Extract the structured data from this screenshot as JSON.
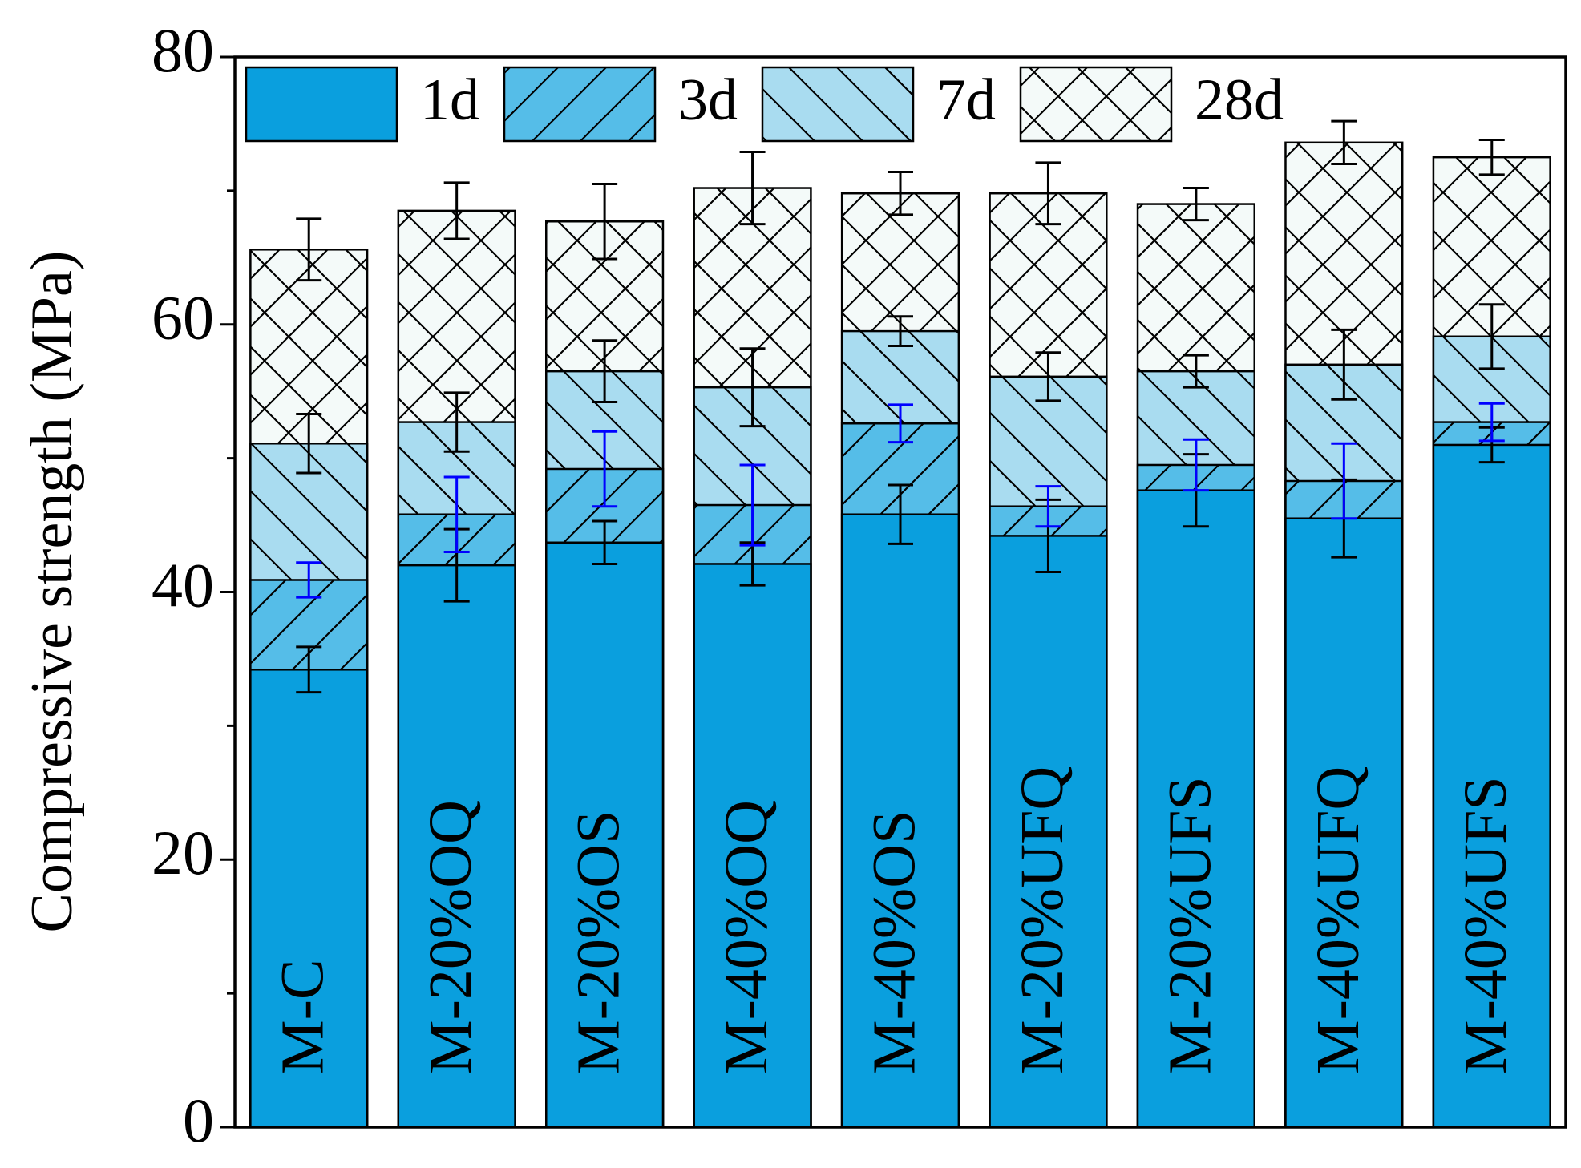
{
  "chart_data": {
    "type": "bar",
    "ylabel": "Compressive strength (MPa)",
    "categories": [
      "M-C",
      "M-20%OQ",
      "M-20%OS",
      "M-40%OQ",
      "M-40%OS",
      "M-20%UFQ",
      "M-20%UFS",
      "M-40%UFQ",
      "M-40%UFS"
    ],
    "series": [
      {
        "name": "1d",
        "color": "#0a9fde",
        "hatch": "none",
        "error_color": "#000000",
        "values": [
          34.2,
          42.0,
          43.7,
          42.1,
          45.8,
          44.2,
          47.6,
          45.5,
          51.0
        ],
        "errors": [
          1.7,
          2.7,
          1.6,
          1.6,
          2.2,
          2.7,
          2.7,
          2.9,
          1.3
        ]
      },
      {
        "name": "3d",
        "color": "#55bde8",
        "hatch": "/",
        "error_color": "#0000ff",
        "values": [
          40.9,
          45.8,
          49.2,
          46.5,
          52.6,
          46.4,
          49.5,
          48.3,
          52.7
        ],
        "errors": [
          1.3,
          2.8,
          2.8,
          3.0,
          1.4,
          1.5,
          1.9,
          2.8,
          1.4
        ]
      },
      {
        "name": "7d",
        "color": "#a9dcf0",
        "hatch": "\\",
        "error_color": "#000000",
        "values": [
          51.1,
          52.7,
          56.5,
          55.3,
          59.5,
          56.1,
          56.5,
          57.0,
          59.1
        ],
        "errors": [
          2.2,
          2.2,
          2.3,
          2.9,
          1.1,
          1.8,
          1.2,
          2.6,
          2.4
        ]
      },
      {
        "name": "28d",
        "color": "#f4faf9",
        "hatch": "x",
        "error_color": "#000000",
        "values": [
          65.6,
          68.5,
          67.7,
          70.2,
          69.8,
          69.8,
          69.0,
          73.6,
          72.5
        ],
        "errors": [
          2.3,
          2.1,
          2.8,
          2.7,
          1.6,
          2.3,
          1.2,
          1.6,
          1.3
        ]
      }
    ],
    "ylim": [
      0,
      80
    ],
    "yticks": [
      0,
      20,
      40,
      60,
      80
    ],
    "yminorticks": [
      10,
      30,
      50,
      70
    ],
    "legend": "top-left"
  }
}
